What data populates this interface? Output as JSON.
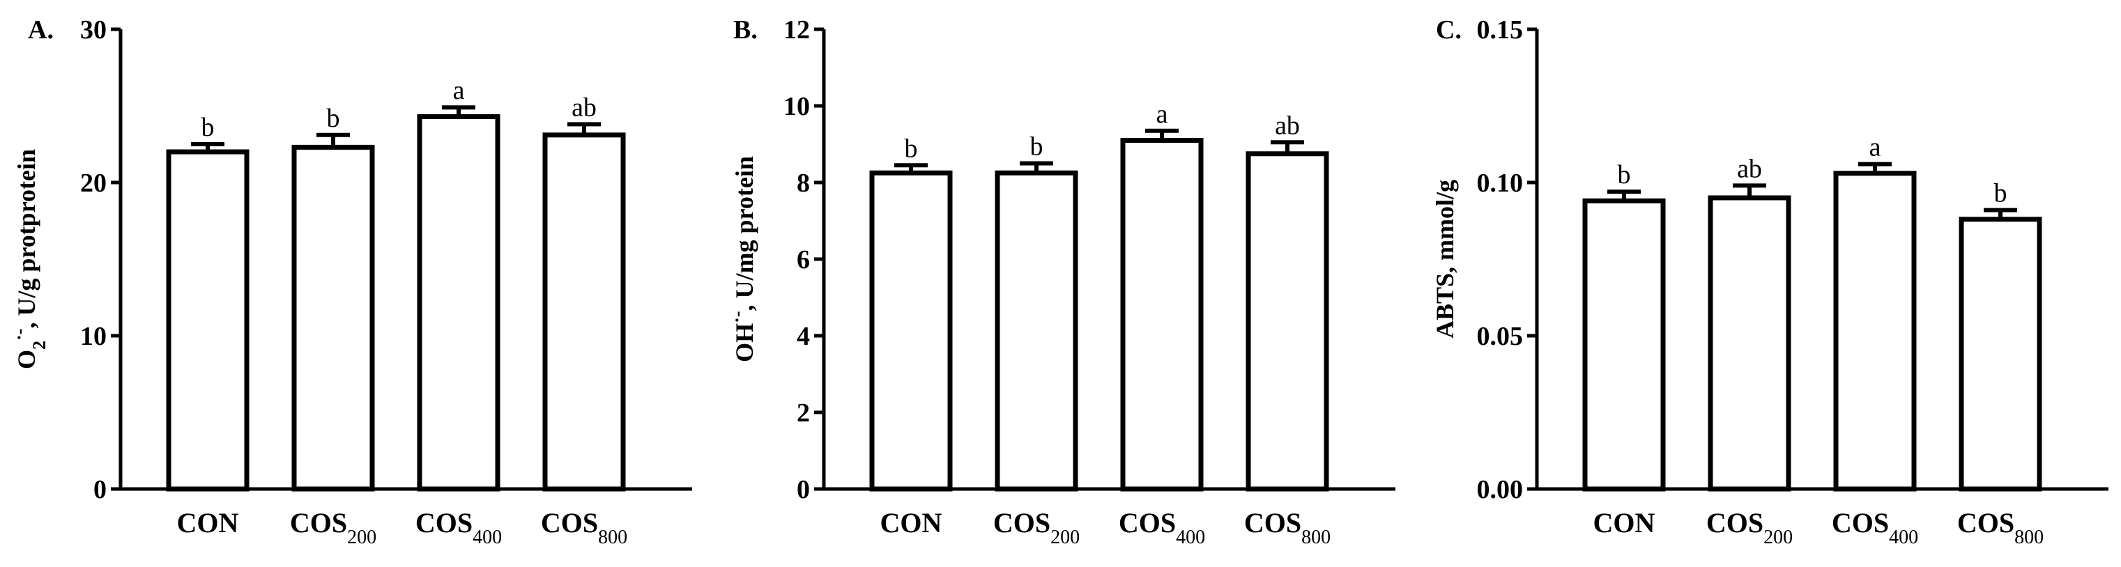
{
  "figure": {
    "chart_data": [
      {
        "type": "bar",
        "panel": "A.",
        "ylabel_main": "O",
        "ylabel_sub": "2",
        "ylabel_sup": "·-",
        "ylabel_rest": ", U/g protprotein",
        "ylim": [
          0,
          30
        ],
        "yticks": [
          "0",
          "10",
          "20",
          "30"
        ],
        "categories": [
          {
            "main": "CON",
            "sub": ""
          },
          {
            "main": "COS",
            "sub": "200"
          },
          {
            "main": "COS",
            "sub": "400"
          },
          {
            "main": "COS",
            "sub": "800"
          }
        ],
        "values": [
          22.0,
          22.3,
          24.3,
          23.1
        ],
        "errors": [
          0.5,
          0.8,
          0.6,
          0.7
        ],
        "letters": [
          "b",
          "b",
          "a",
          "ab"
        ]
      },
      {
        "type": "bar",
        "panel": "B.",
        "ylabel_main": "OH",
        "ylabel_sub": "",
        "ylabel_sup": "·-",
        "ylabel_rest": ", U/mg protein",
        "ylim": [
          0,
          12
        ],
        "yticks": [
          "0",
          "2",
          "4",
          "6",
          "8",
          "10",
          "12"
        ],
        "categories": [
          {
            "main": "CON",
            "sub": ""
          },
          {
            "main": "COS",
            "sub": "200"
          },
          {
            "main": "COS",
            "sub": "400"
          },
          {
            "main": "COS",
            "sub": "800"
          }
        ],
        "values": [
          8.25,
          8.25,
          9.1,
          8.75
        ],
        "errors": [
          0.2,
          0.25,
          0.25,
          0.3
        ],
        "letters": [
          "b",
          "b",
          "a",
          "ab"
        ]
      },
      {
        "type": "bar",
        "panel": "C.",
        "ylabel_main": "ABTS, mmol/g",
        "ylabel_sub": "",
        "ylabel_sup": "",
        "ylabel_rest": "",
        "ylim": [
          0,
          0.15
        ],
        "yticks": [
          "0.00",
          "0.05",
          "0.10",
          "0.15"
        ],
        "categories": [
          {
            "main": "CON",
            "sub": ""
          },
          {
            "main": "COS",
            "sub": "200"
          },
          {
            "main": "COS",
            "sub": "400"
          },
          {
            "main": "COS",
            "sub": "800"
          }
        ],
        "values": [
          0.094,
          0.095,
          0.103,
          0.088
        ],
        "errors": [
          0.003,
          0.004,
          0.003,
          0.003
        ],
        "letters": [
          "b",
          "ab",
          "a",
          "b"
        ]
      }
    ]
  }
}
